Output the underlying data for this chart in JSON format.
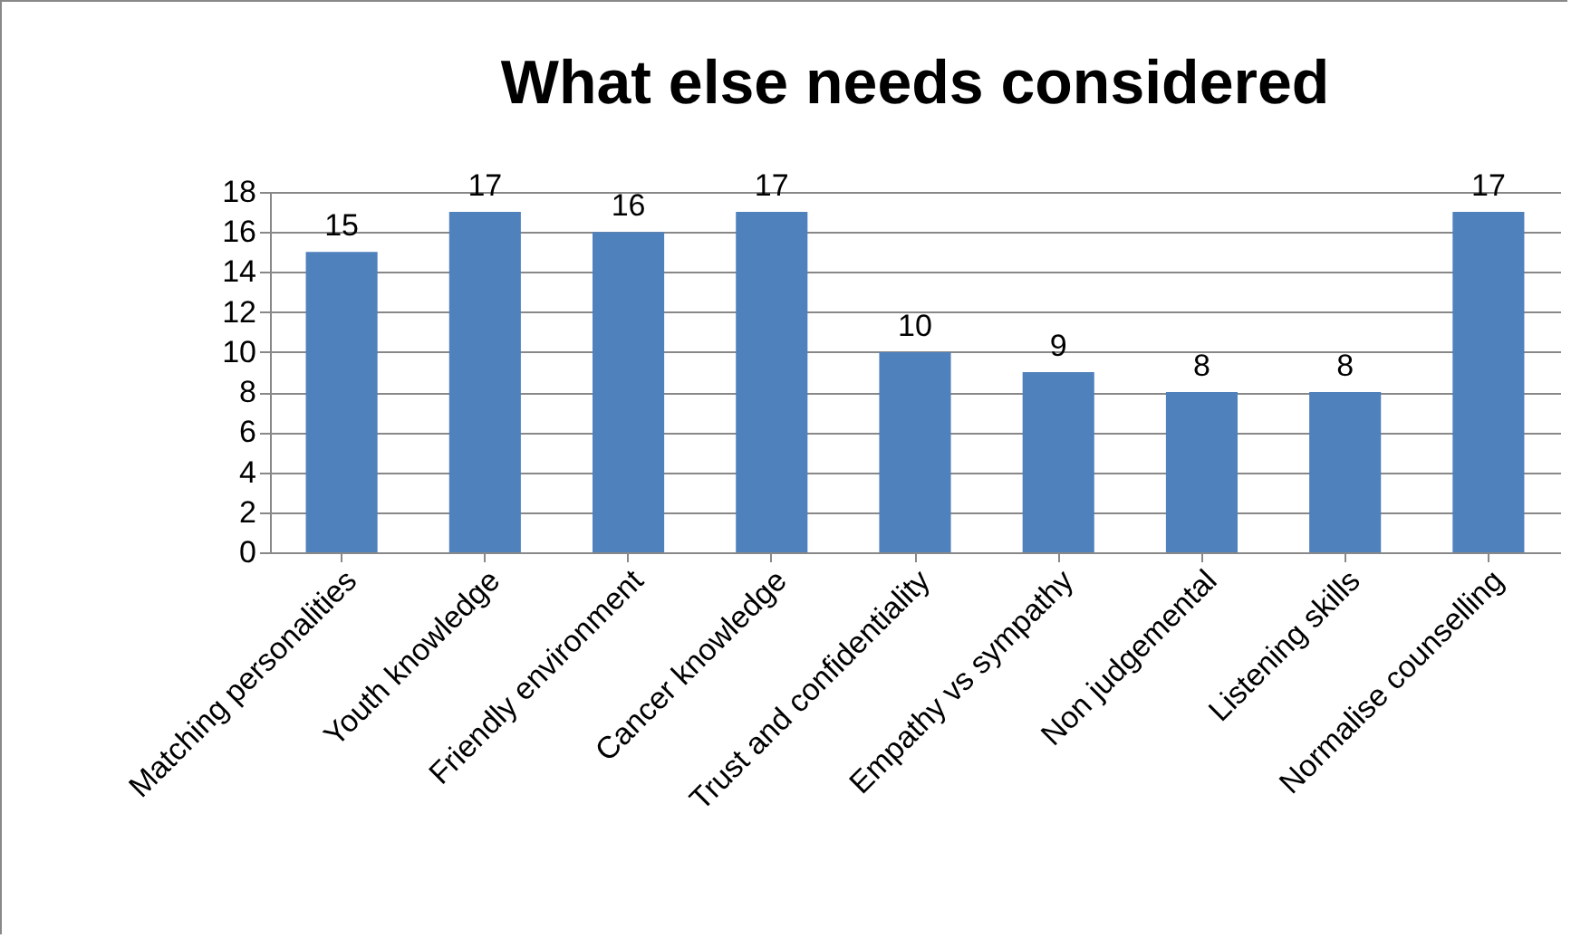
{
  "chart_data": {
    "type": "bar",
    "title": "What else needs considered",
    "categories": [
      "Matching personalities",
      "Youth knowledge",
      "Friendly environment",
      "Cancer knowledge",
      "Trust and confidentiality",
      "Empathy vs sympathy",
      "Non judgemental",
      "Listening skills",
      "Normalise counselling"
    ],
    "values": [
      15,
      17,
      16,
      17,
      10,
      9,
      8,
      8,
      17
    ],
    "color": "#4f81bd",
    "ylim": [
      0,
      18
    ],
    "yticks": [
      0,
      2,
      4,
      6,
      8,
      10,
      12,
      14,
      16,
      18
    ],
    "grid": "y",
    "data_labels": true
  }
}
